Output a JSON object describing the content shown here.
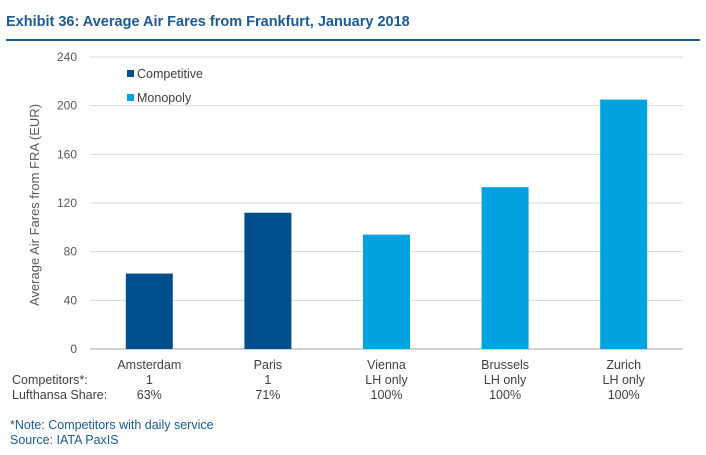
{
  "title": "Exhibit 36: Average Air Fares from Frankfurt, January 2018",
  "colors": {
    "title": "#1c5a92",
    "competitive": "#004f8c",
    "monopoly": "#00a3e0"
  },
  "row_labels": {
    "competitors": "Competitors*:",
    "share": "Lufthansa Share:"
  },
  "rows": [
    {
      "competitors": "1",
      "share": "63%"
    },
    {
      "competitors": "1",
      "share": "71%"
    },
    {
      "competitors": "LH only",
      "share": "100%"
    },
    {
      "competitors": "LH only",
      "share": "100%"
    },
    {
      "competitors": "LH only",
      "share": "100%"
    }
  ],
  "footnote": "*Note: Competitors with daily service",
  "source": "Source: IATA PaxIS",
  "chart_data": {
    "type": "bar",
    "categories": [
      "Amsterdam",
      "Paris",
      "Vienna",
      "Brussels",
      "Zurich"
    ],
    "values": [
      62,
      112,
      94,
      133,
      205
    ],
    "groups": [
      "Competitive",
      "Competitive",
      "Monopoly",
      "Monopoly",
      "Monopoly"
    ],
    "legend": [
      "Competitive",
      "Monopoly"
    ],
    "legend_position": "top-left",
    "ylabel": "Average Air Fares from FRA (EUR)",
    "xlabel": "",
    "ylim": [
      0,
      240
    ],
    "yticks": [
      0,
      40,
      80,
      120,
      160,
      200,
      240
    ],
    "grid": true
  }
}
